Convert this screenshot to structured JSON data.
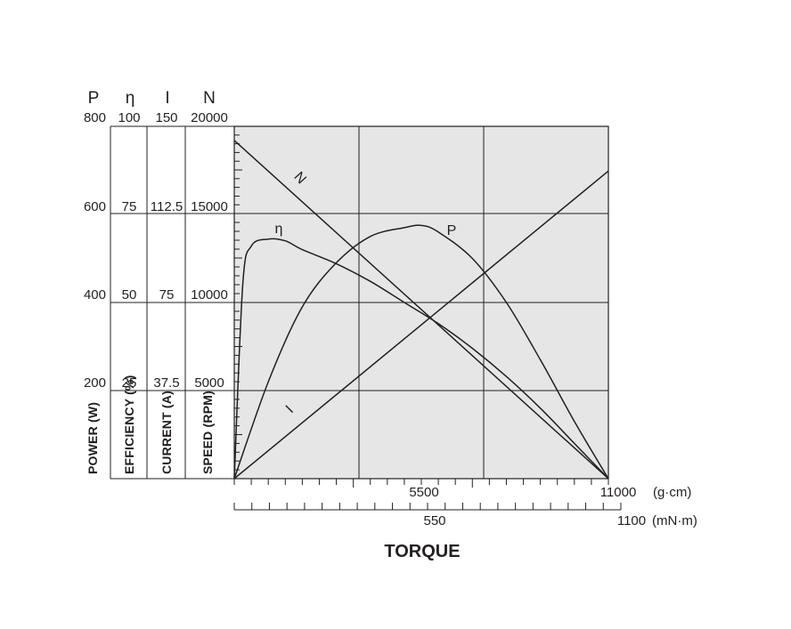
{
  "chart_data": {
    "type": "line",
    "title": "TORQUE",
    "x_axes": [
      {
        "unit": "(g·cm)",
        "tick_labels": [
          "5500",
          "11000"
        ],
        "range": [
          0,
          11000
        ],
        "minor_ticks": 21
      },
      {
        "unit": "(mN·m)",
        "tick_labels": [
          "550",
          "1100"
        ],
        "range": [
          0,
          1100
        ],
        "minor_ticks": 21
      }
    ],
    "y_axes": [
      {
        "symbol": "P",
        "label": "POWER (W)",
        "range": [
          0,
          800
        ],
        "tick_labels": [
          "800",
          "600",
          "400",
          "200"
        ]
      },
      {
        "symbol": "η",
        "label": "EFFICIENCY (%)",
        "range": [
          0,
          100
        ],
        "tick_labels": [
          "100",
          "75",
          "50",
          "25"
        ]
      },
      {
        "symbol": "I",
        "label": "CURRENT (A)",
        "range": [
          0,
          150
        ],
        "tick_labels": [
          "150",
          "112.5",
          "75",
          "37.5"
        ]
      },
      {
        "symbol": "N",
        "label": "SPEED (RPM)",
        "range": [
          0,
          20000
        ],
        "tick_labels": [
          "20000",
          "15000",
          "10000",
          "5000"
        ]
      }
    ],
    "grid": true,
    "series": [
      {
        "name": "N",
        "axis": "N",
        "x": [
          0,
          11000
        ],
        "y": [
          19200,
          0
        ]
      },
      {
        "name": "I",
        "axis": "I",
        "x": [
          0,
          11000
        ],
        "y": [
          0,
          131
        ]
      },
      {
        "name": "P",
        "axis": "P",
        "x": [
          0,
          1000,
          2000,
          3000,
          4000,
          5000,
          5500,
          6000,
          7000,
          8000,
          9000,
          10000,
          11000
        ],
        "y": [
          0,
          220,
          390,
          490,
          550,
          570,
          575,
          560,
          500,
          400,
          270,
          130,
          0
        ]
      },
      {
        "name": "η",
        "axis": "η",
        "x": [
          0,
          250,
          500,
          1000,
          1500,
          2000,
          3000,
          4000,
          5000,
          6000,
          7000,
          8000,
          9000,
          10000,
          11000
        ],
        "y": [
          0,
          55,
          66,
          68,
          67.5,
          65,
          61,
          56,
          50,
          44,
          37,
          29,
          20,
          10,
          0
        ]
      }
    ]
  }
}
